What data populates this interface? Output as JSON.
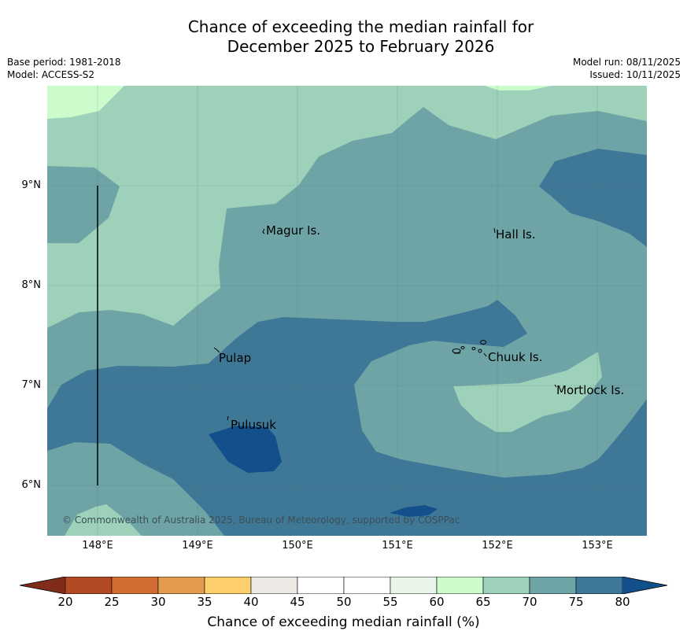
{
  "header": {
    "title_line1": "Chance of exceeding the median rainfall for",
    "title_line2": "December 2025 to February 2026",
    "base_period": "Base period: 1981-2018",
    "model": "Model: ACCESS-S2",
    "model_run": "Model run: 08/11/2025",
    "issued": "Issued: 10/11/2025"
  },
  "map": {
    "copyright": "© Commonwealth of Australia 2025, Bureau of Meteorology, supported by COSPPac",
    "lat_labels": [
      "9°N",
      "8°N",
      "7°N",
      "6°N"
    ],
    "lon_labels": [
      "148°E",
      "149°E",
      "150°E",
      "151°E",
      "152°E",
      "153°E"
    ],
    "places": {
      "magur": "Magur Is.",
      "hall": "Hall Is.",
      "pulap": "Pulap",
      "chuuk": "Chuuk Is.",
      "mortlock": "Mortlock Is.",
      "pulusuk": "Pulusuk"
    },
    "colors": {
      "c60_65": "#ccfbcc",
      "c65_70": "#9dd1b9",
      "c70_75": "#6ea4a6",
      "c75_80": "#3f7897",
      "c80": "#124f8b"
    }
  },
  "colorbar": {
    "label": "Chance of exceeding median rainfall (%)",
    "ticks": [
      "20",
      "25",
      "30",
      "35",
      "40",
      "45",
      "50",
      "55",
      "60",
      "65",
      "70",
      "75",
      "80"
    ],
    "colors": [
      "#7f2d1a",
      "#b34a24",
      "#d16c33",
      "#e49b4f",
      "#fdcf6c",
      "#ece8e4",
      "#ffffff",
      "#ffffff",
      "#e9f5e9",
      "#ccfbcc",
      "#9dd1b9",
      "#6ea4a6",
      "#3f7897",
      "#124f8b"
    ]
  }
}
